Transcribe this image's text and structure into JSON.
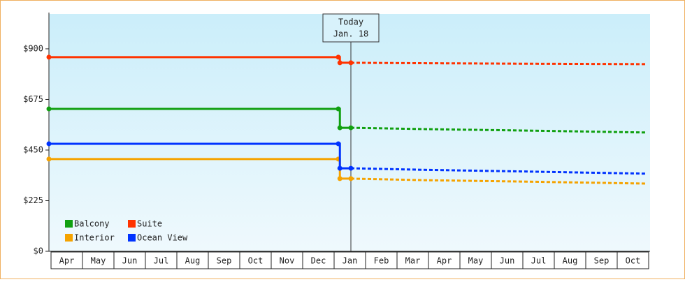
{
  "chart_data": {
    "type": "line",
    "categories": [
      "Apr",
      "May",
      "Jun",
      "Jul",
      "Aug",
      "Sep",
      "Oct",
      "Nov",
      "Dec",
      "Jan",
      "Feb",
      "Mar",
      "Apr",
      "May",
      "Jun",
      "Jul",
      "Aug",
      "Sep",
      "Oct"
    ],
    "xlim": [
      0,
      19
    ],
    "ylim": [
      0,
      1055
    ],
    "yticks": [
      {
        "value": 0,
        "label": "$0"
      },
      {
        "value": 225,
        "label": "$225"
      },
      {
        "value": 450,
        "label": "$450"
      },
      {
        "value": 675,
        "label": "$675"
      },
      {
        "value": 900,
        "label": "$900"
      }
    ],
    "x": [
      0,
      9.2,
      9.25,
      9.6
    ],
    "forecast_x": [
      9.6,
      12,
      15,
      19
    ],
    "series": [
      {
        "name": "Balcony",
        "color": "#11a011",
        "values": [
          633,
          633,
          549,
          549
        ],
        "forecast": [
          549,
          543,
          537,
          528
        ]
      },
      {
        "name": "Suite",
        "color": "#ff3300",
        "values": [
          863,
          863,
          838,
          838
        ],
        "forecast": [
          838,
          836,
          834,
          832
        ]
      },
      {
        "name": "Interior",
        "color": "#f5a300",
        "values": [
          410,
          410,
          323,
          323
        ],
        "forecast": [
          323,
          316,
          310,
          301
        ]
      },
      {
        "name": "Ocean View",
        "color": "#0033ff",
        "values": [
          478,
          478,
          369,
          369
        ],
        "forecast": [
          369,
          362,
          355,
          345
        ]
      }
    ],
    "annotation": {
      "lines": [
        "Today",
        "Jan. 18"
      ],
      "x": 9.6
    },
    "legend": "lower-left"
  }
}
